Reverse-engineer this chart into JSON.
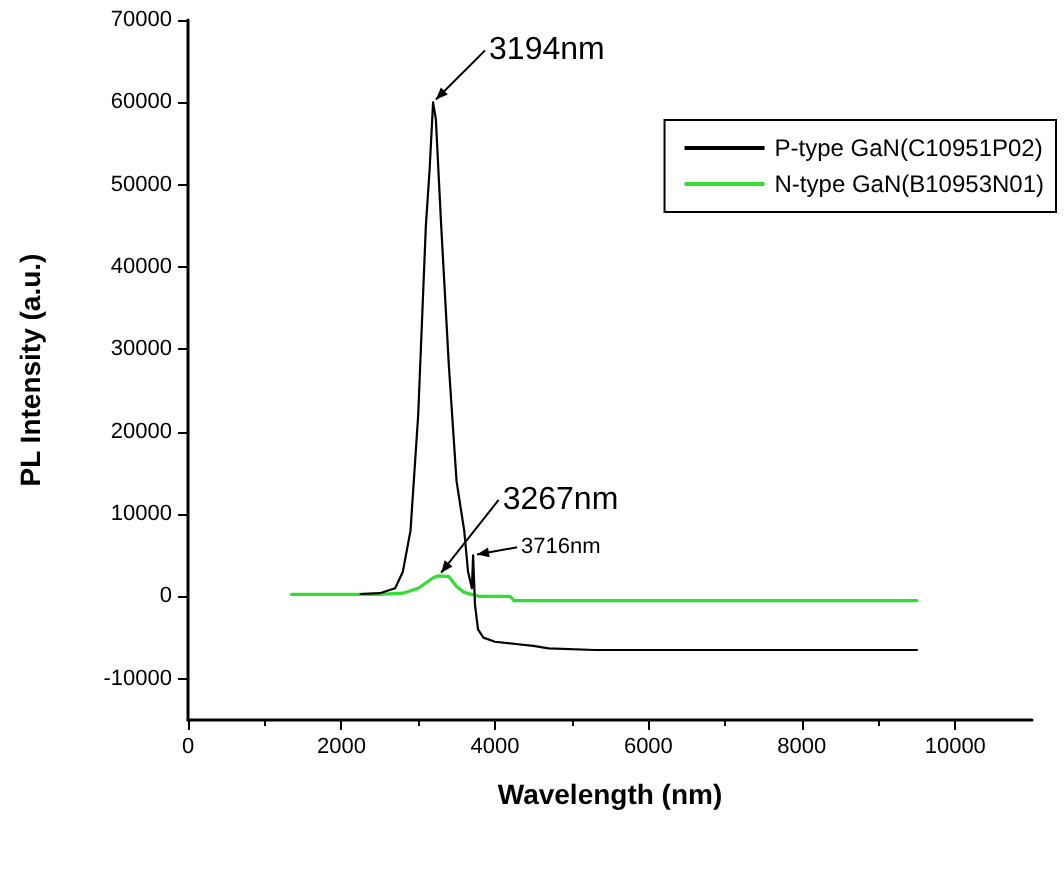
{
  "chart_data": {
    "type": "line",
    "xlabel": "Wavelength (nm)",
    "ylabel": "PL Intensity (a.u.)",
    "xlim": [
      0,
      11000
    ],
    "xticks": [
      0,
      2000,
      4000,
      6000,
      8000,
      10000
    ],
    "ylim": [
      -15000,
      70000
    ],
    "yticks": [
      -10000,
      0,
      10000,
      20000,
      30000,
      40000,
      50000,
      60000,
      70000
    ],
    "grid": false,
    "legend": "top right",
    "marker": "none",
    "line_style": "solid",
    "series": [
      {
        "name": "P-type GaN(C10951P02)",
        "color": "#000000",
        "x": [
          2250,
          2500,
          2700,
          2800,
          2900,
          3000,
          3100,
          3150,
          3194,
          3230,
          3300,
          3400,
          3500,
          3550,
          3600,
          3650,
          3700,
          3716,
          3740,
          3780,
          3850,
          4000,
          4300,
          4500,
          4700,
          5300,
          9500
        ],
        "values": [
          300,
          400,
          1000,
          3000,
          8000,
          22000,
          45000,
          52000,
          60000,
          58000,
          45000,
          28000,
          14000,
          11000,
          8000,
          3000,
          1000,
          5000,
          -1000,
          -4000,
          -5000,
          -5500,
          -5800,
          -6000,
          -6300,
          -6500,
          -6500
        ]
      },
      {
        "name": "N-type GaN(B10953N01)",
        "color": "#33dd33",
        "x": [
          1350,
          2500,
          2800,
          3000,
          3200,
          3267,
          3400,
          3500,
          3600,
          3800,
          4200,
          4250,
          9500
        ],
        "values": [
          250,
          250,
          400,
          1000,
          2300,
          2500,
          2400,
          1200,
          500,
          0,
          0,
          -500,
          -500
        ]
      }
    ],
    "annotations": [
      {
        "text": "3194nm",
        "x": 3194,
        "y": 60000
      },
      {
        "text": "3267nm",
        "x": 3267,
        "y": 2500
      },
      {
        "text": "3716nm",
        "x": 3716,
        "y": 5000
      }
    ]
  }
}
